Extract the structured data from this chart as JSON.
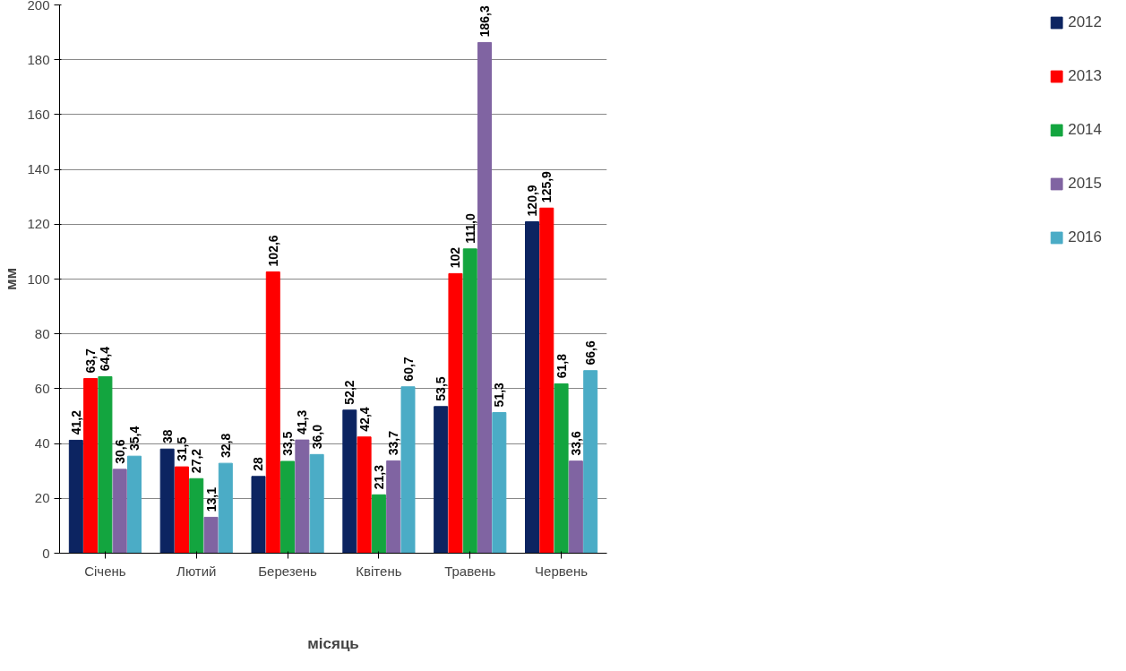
{
  "chart_data": {
    "type": "bar",
    "xlabel": "місяць",
    "ylabel": "мм",
    "categories": [
      "Січень",
      "Лютий",
      "Березень",
      "Квітень",
      "Травень",
      "Червень"
    ],
    "series": [
      {
        "name": "2012",
        "color": "#0c2461",
        "values": [
          41.2,
          38,
          28,
          52.2,
          53.5,
          120.9
        ],
        "value_labels": [
          "41,2",
          "38",
          "28",
          "52,2",
          "53,5",
          "120,9"
        ]
      },
      {
        "name": "2013",
        "color": "#ff0000",
        "values": [
          63.7,
          31.5,
          102.6,
          42.4,
          102,
          125.9
        ],
        "value_labels": [
          "63,7",
          "31,5",
          "102,6",
          "42,4",
          "102",
          "125,9"
        ]
      },
      {
        "name": "2014",
        "color": "#13a53f",
        "values": [
          64.4,
          27.2,
          33.5,
          21.3,
          111.0,
          61.8
        ],
        "value_labels": [
          "64,4",
          "27,2",
          "33,5",
          "21,3",
          "111,0",
          "61,8"
        ]
      },
      {
        "name": "2015",
        "color": "#8064a2",
        "values": [
          30.6,
          13.1,
          41.3,
          33.7,
          186.3,
          33.6
        ],
        "value_labels": [
          "30,6",
          "13,1",
          "41,3",
          "33,7",
          "186,3",
          "33,6"
        ]
      },
      {
        "name": "2016",
        "color": "#4bacc6",
        "values": [
          35.4,
          32.8,
          36.0,
          60.7,
          51.3,
          66.6
        ],
        "value_labels": [
          "35,4",
          "32,8",
          "36,0",
          "60,7",
          "51,3",
          "66,6"
        ]
      }
    ],
    "ylim": [
      0,
      200
    ],
    "yticks": [
      0,
      20,
      40,
      60,
      80,
      100,
      120,
      140,
      160,
      180,
      200
    ],
    "grid": "y",
    "legend": "right"
  }
}
